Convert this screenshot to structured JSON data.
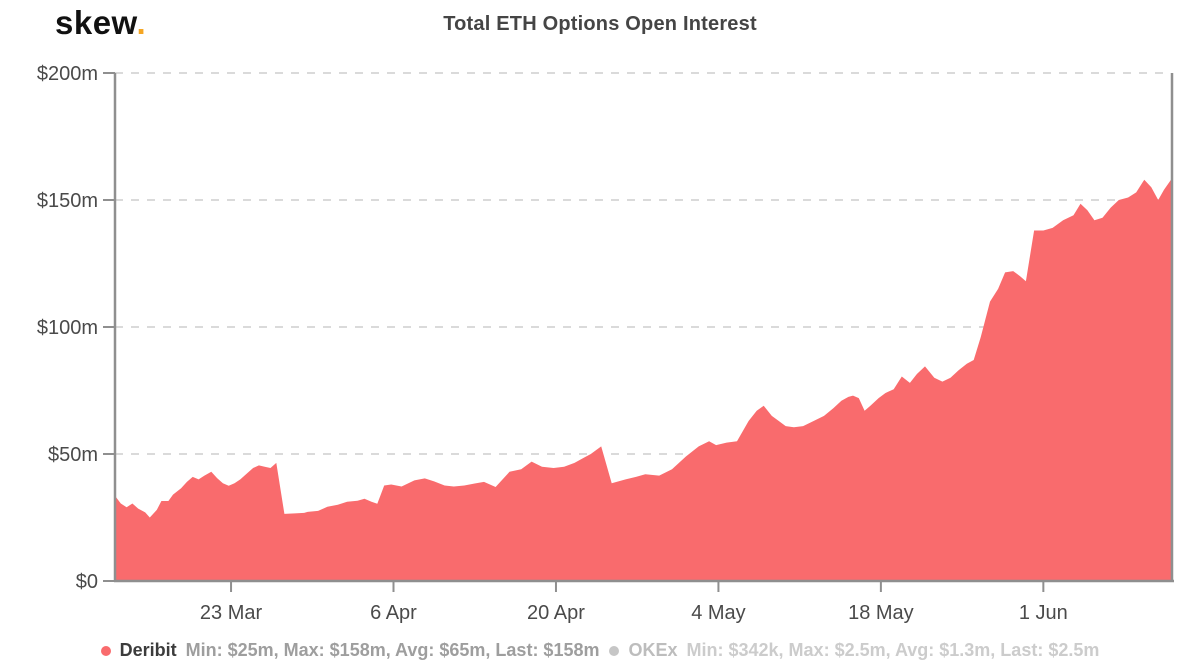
{
  "header": {
    "logo_text": "skew",
    "logo_dot": ".",
    "title": "Total ETH Options Open Interest"
  },
  "colors": {
    "area_fill": "#f96b6d",
    "okex_gray": "#c6c6c6",
    "axis": "#8f8f8f",
    "gridline": "#dadada",
    "tick_label": "#4a4a4a",
    "logo_dot_accent": "#f5a623"
  },
  "legend": [
    {
      "name": "Deribit",
      "stats_text": "Min: $25m, Max: $158m, Avg: $65m, Last: $158m",
      "enabled": true
    },
    {
      "name": "OKEx",
      "stats_text": "Min: $342k, Max: $2.5m, Avg: $1.3m, Last: $2.5m",
      "enabled": false
    }
  ],
  "chart_data": {
    "type": "area",
    "title": "Total ETH Options Open Interest",
    "xlabel": "",
    "ylabel": "",
    "ylim": [
      0,
      200
    ],
    "grid": "horizontal-dashed",
    "legend_position": "bottom-center",
    "x_start_date": "13 Mar",
    "x_end_date": "12 Jun",
    "days_span": 91,
    "y_ticks": [
      {
        "value": 0,
        "label": "$0"
      },
      {
        "value": 50,
        "label": "$50m"
      },
      {
        "value": 100,
        "label": "$100m"
      },
      {
        "value": 150,
        "label": "$150m"
      },
      {
        "value": 200,
        "label": "$200m"
      }
    ],
    "x_ticks": [
      {
        "day": 10,
        "label": "23 Mar"
      },
      {
        "day": 24,
        "label": "6 Apr"
      },
      {
        "day": 38,
        "label": "20 Apr"
      },
      {
        "day": 52,
        "label": "4 May"
      },
      {
        "day": 66,
        "label": "18 May"
      },
      {
        "day": 80,
        "label": "1 Jun"
      }
    ],
    "series": [
      {
        "name": "Deribit",
        "color": "#f96b6d",
        "visible": true,
        "unit": "$m",
        "stats": {
          "min": "$25m",
          "max": "$158m",
          "avg": "$65m",
          "last": "$158m"
        },
        "points": [
          [
            0,
            33.5
          ],
          [
            0.5,
            30.5
          ],
          [
            1,
            29
          ],
          [
            1.5,
            30.5
          ],
          [
            2,
            28.5
          ],
          [
            2.6,
            27
          ],
          [
            3,
            25
          ],
          [
            3.6,
            28
          ],
          [
            4,
            31.5
          ],
          [
            4.6,
            31.5
          ],
          [
            5,
            34
          ],
          [
            5.7,
            36.5
          ],
          [
            6.2,
            39
          ],
          [
            6.7,
            41
          ],
          [
            7.2,
            40
          ],
          [
            7.7,
            41.5
          ],
          [
            8.3,
            43
          ],
          [
            8.8,
            40.5
          ],
          [
            9.3,
            38.5
          ],
          [
            9.8,
            37.5
          ],
          [
            10.3,
            38.5
          ],
          [
            10.8,
            40
          ],
          [
            11.4,
            42.5
          ],
          [
            11.9,
            44.5
          ],
          [
            12.4,
            45.5
          ],
          [
            12.9,
            45
          ],
          [
            13.4,
            44.5
          ],
          [
            13.9,
            46.5
          ],
          [
            14.6,
            26.4
          ],
          [
            15.5,
            26.6
          ],
          [
            16.3,
            26.8
          ],
          [
            16.6,
            27.2
          ],
          [
            17.5,
            27.6
          ],
          [
            18.3,
            29.2
          ],
          [
            19.2,
            30
          ],
          [
            20,
            31.2
          ],
          [
            20.9,
            31.6
          ],
          [
            21.5,
            32.4
          ],
          [
            22.1,
            31.2
          ],
          [
            22.6,
            30.4
          ],
          [
            23.2,
            37.6
          ],
          [
            23.8,
            38
          ],
          [
            24.7,
            37.2
          ],
          [
            25.8,
            39.6
          ],
          [
            26.7,
            40.4
          ],
          [
            27.5,
            39.2
          ],
          [
            28.4,
            37.6
          ],
          [
            29.2,
            37.2
          ],
          [
            30.1,
            37.6
          ],
          [
            31,
            38.4
          ],
          [
            31.8,
            39
          ],
          [
            32.8,
            37
          ],
          [
            34,
            43
          ],
          [
            35,
            44
          ],
          [
            35.9,
            47
          ],
          [
            36.8,
            45
          ],
          [
            37.8,
            44.5
          ],
          [
            38.7,
            45
          ],
          [
            39.6,
            46.5
          ],
          [
            40.4,
            48.5
          ],
          [
            41,
            50
          ],
          [
            41.9,
            53
          ],
          [
            42.8,
            38.5
          ],
          [
            44,
            40
          ],
          [
            44.9,
            41
          ],
          [
            45.7,
            42
          ],
          [
            46.9,
            41.5
          ],
          [
            48,
            44
          ],
          [
            49.2,
            49
          ],
          [
            50.3,
            53
          ],
          [
            51.2,
            55
          ],
          [
            51.8,
            53.5
          ],
          [
            52.7,
            54.5
          ],
          [
            53.6,
            55
          ],
          [
            54.6,
            63
          ],
          [
            55.3,
            67
          ],
          [
            55.9,
            69
          ],
          [
            56.6,
            65
          ],
          [
            57.2,
            63
          ],
          [
            57.8,
            61
          ],
          [
            58.5,
            60.5
          ],
          [
            59.3,
            61
          ],
          [
            60.2,
            63
          ],
          [
            61.1,
            65
          ],
          [
            61.9,
            68
          ],
          [
            62.6,
            71
          ],
          [
            63.2,
            72.5
          ],
          [
            63.6,
            73
          ],
          [
            64.1,
            72
          ],
          [
            64.6,
            67
          ],
          [
            65.1,
            69
          ],
          [
            65.8,
            72
          ],
          [
            66.4,
            74
          ],
          [
            67.1,
            75.5
          ],
          [
            67.8,
            80.5
          ],
          [
            68.5,
            78
          ],
          [
            69.1,
            81.5
          ],
          [
            69.8,
            84.5
          ],
          [
            70.6,
            80
          ],
          [
            71.3,
            78.5
          ],
          [
            72,
            80
          ],
          [
            72.7,
            83
          ],
          [
            73.4,
            85.5
          ],
          [
            74,
            87
          ],
          [
            74.6,
            96
          ],
          [
            75.4,
            110
          ],
          [
            76.1,
            115
          ],
          [
            76.7,
            121.5
          ],
          [
            77.4,
            122
          ],
          [
            78,
            120
          ],
          [
            78.5,
            118
          ],
          [
            79.2,
            138
          ],
          [
            80,
            138
          ],
          [
            80.8,
            139
          ],
          [
            81.7,
            142
          ],
          [
            82.6,
            144
          ],
          [
            83.2,
            148.5
          ],
          [
            83.8,
            146
          ],
          [
            84.4,
            142
          ],
          [
            85.1,
            143
          ],
          [
            85.8,
            147
          ],
          [
            86.5,
            150
          ],
          [
            87.3,
            151
          ],
          [
            88,
            153
          ],
          [
            88.7,
            158
          ],
          [
            89.3,
            155
          ],
          [
            89.9,
            150
          ],
          [
            90.4,
            154
          ],
          [
            91,
            158
          ]
        ]
      },
      {
        "name": "OKEx",
        "color": "#c6c6c6",
        "visible": false,
        "unit": "$m",
        "stats": {
          "min": "$342k",
          "max": "$2.5m",
          "avg": "$1.3m",
          "last": "$2.5m"
        },
        "points": []
      }
    ]
  }
}
